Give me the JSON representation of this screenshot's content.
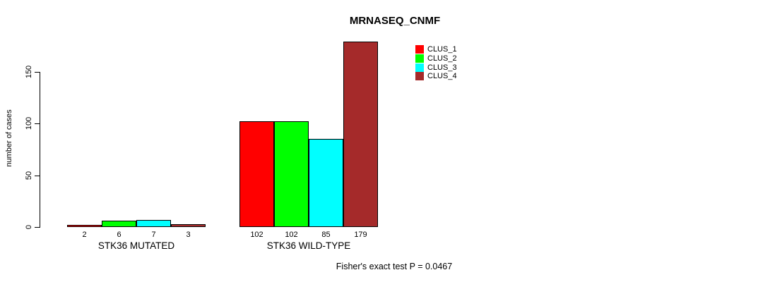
{
  "chart_data": {
    "type": "bar",
    "title": "MRNASEQ_CNMF",
    "ylabel": "number of cases",
    "xlabel": "",
    "yticks": [
      0,
      50,
      100,
      150
    ],
    "ylim": [
      0,
      183
    ],
    "grid": false,
    "legend_position": "top-right-inside",
    "bar_value_labels_shown": true,
    "categories": [
      "STK36 MUTATED",
      "STK36 WILD-TYPE"
    ],
    "series": [
      {
        "name": "CLUS_1",
        "color": "#FF0000",
        "values": [
          2,
          102
        ]
      },
      {
        "name": "CLUS_2",
        "color": "#00FF00",
        "values": [
          6,
          102
        ]
      },
      {
        "name": "CLUS_3",
        "color": "#00FFFF",
        "values": [
          7,
          85
        ]
      },
      {
        "name": "CLUS_4",
        "color": "#A52A2A",
        "values": [
          3,
          179
        ]
      }
    ],
    "annotation": "Fisher's exact test P = 0.0467",
    "axis_color": "#000000",
    "bar_border_color": "#000000"
  }
}
